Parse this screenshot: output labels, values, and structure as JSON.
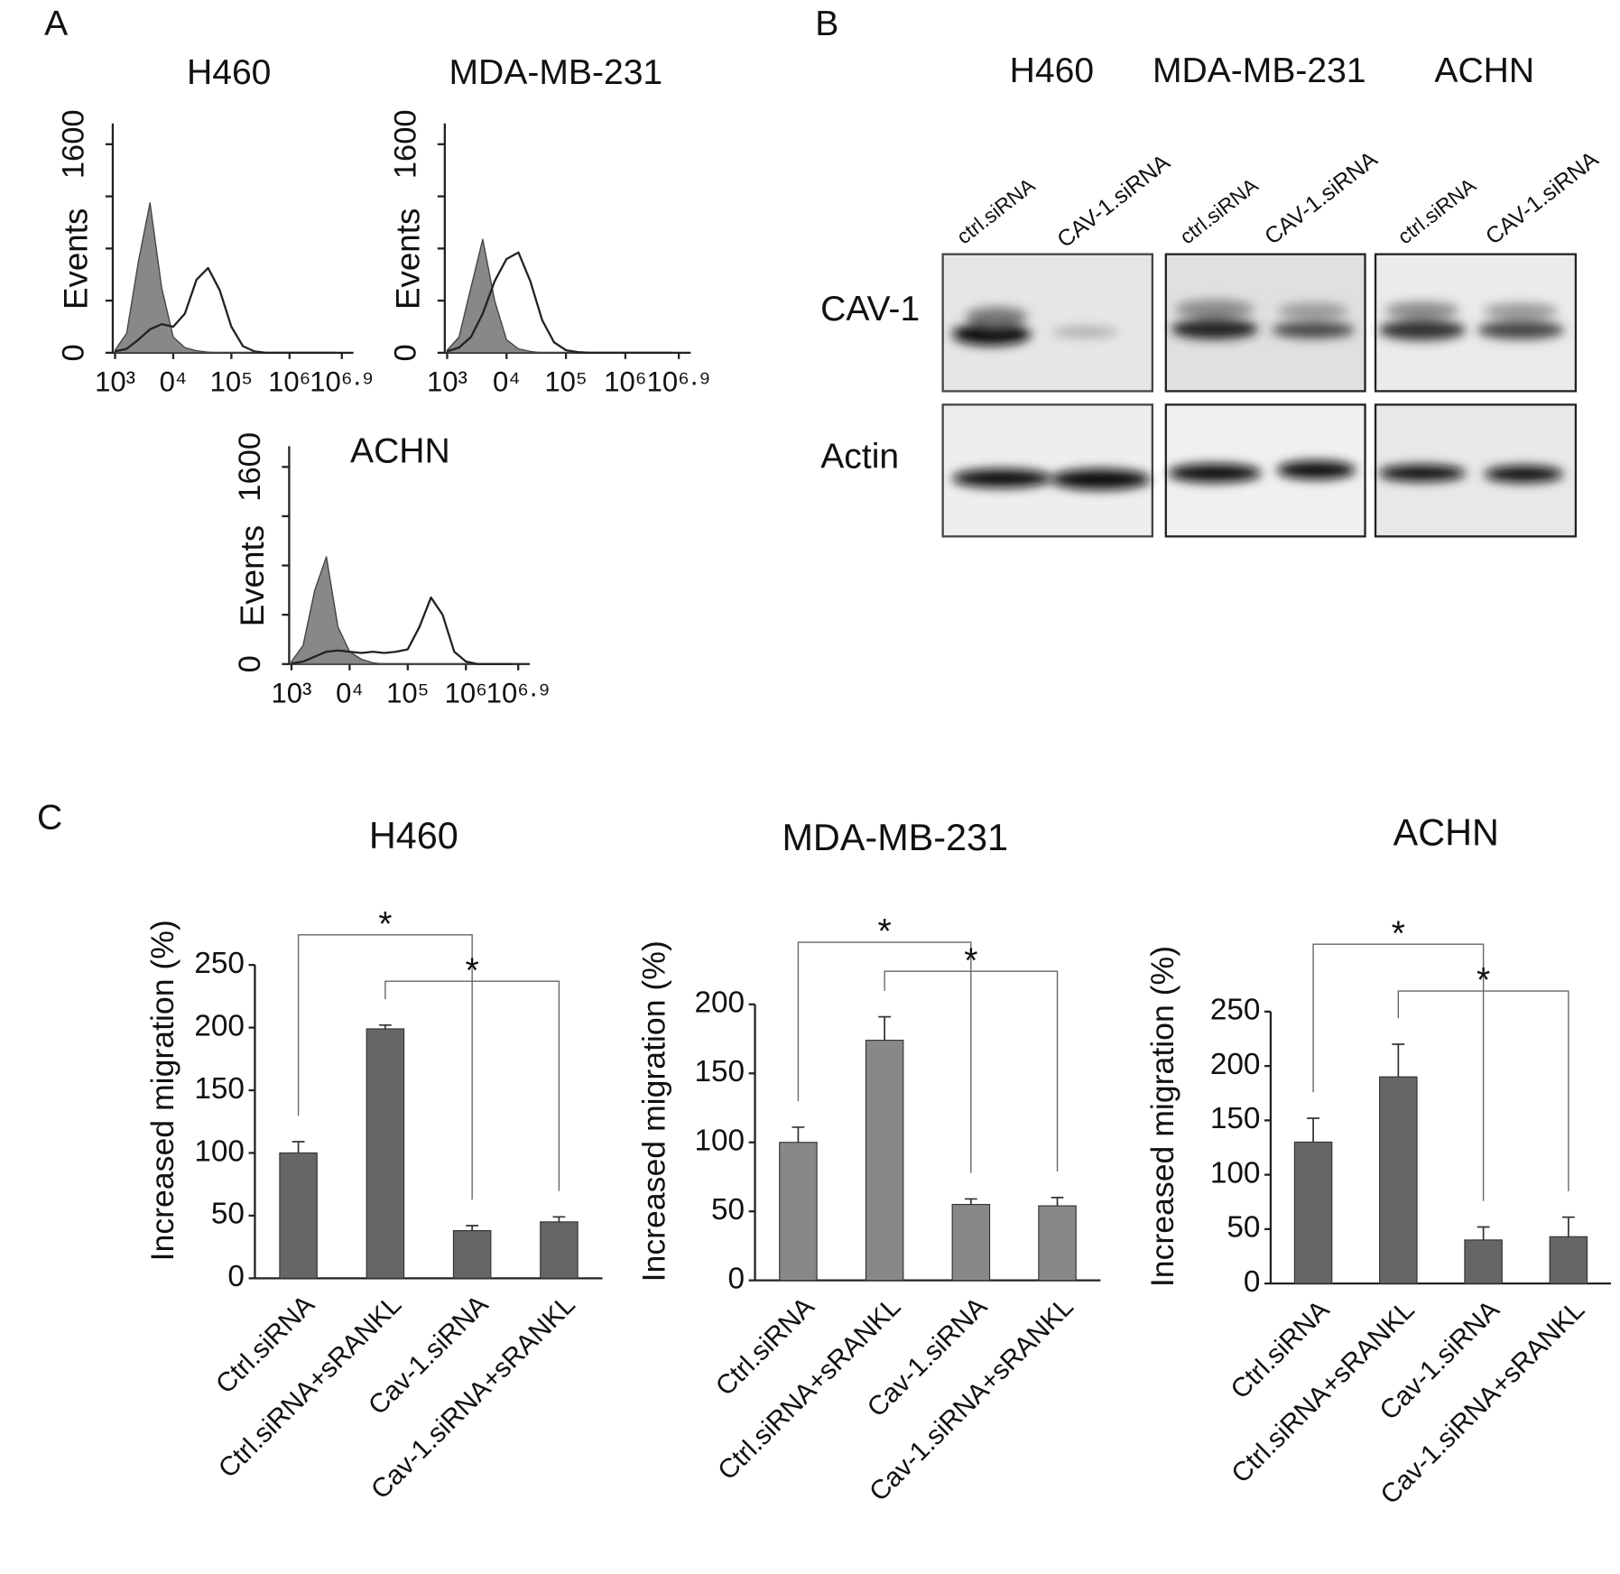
{
  "panel_labels": [
    "A",
    "B",
    "C"
  ],
  "western_blot": {
    "cell_lines": [
      "H460",
      "MDA-MB-231",
      "ACHN"
    ],
    "lanes": [
      [
        "ctrl.siRNA",
        "CAV-1.siRNA"
      ],
      [
        "ctrl.siRNA",
        "CAV-1.siRNA"
      ],
      [
        "ctrl.siRNA",
        "CAV-1.siRNA"
      ]
    ],
    "rows": [
      "CAV-1",
      "Actin"
    ]
  },
  "chart_data": [
    {
      "type": "line",
      "title": "H460",
      "ylabel": "Events",
      "x": [
        3.0,
        3.2,
        3.4,
        3.6,
        3.8,
        4.0,
        4.2,
        4.4,
        4.6,
        4.8,
        5.0,
        5.2,
        5.4,
        5.6,
        5.8,
        6.0,
        6.2,
        6.4,
        6.6,
        6.8
      ],
      "series": [
        {
          "color": "#444444",
          "fill": "#888888",
          "values": [
            20,
            150,
            700,
            1150,
            500,
            120,
            40,
            15,
            5,
            0,
            0,
            0,
            0,
            0,
            0,
            0,
            0,
            0,
            0,
            0
          ]
        },
        {
          "color": "#222222",
          "fill": null,
          "values": [
            10,
            30,
            100,
            180,
            220,
            200,
            300,
            560,
            650,
            480,
            200,
            50,
            10,
            0,
            0,
            0,
            0,
            0,
            0,
            0
          ]
        }
      ],
      "xlim": [
        2.96,
        7.1
      ],
      "xticks": [
        {
          "value": 3,
          "label": "10³"
        },
        {
          "value": 4,
          "label": "0⁴"
        },
        {
          "value": 5,
          "label": "10⁵"
        },
        {
          "value": 6,
          "label": "10⁶"
        },
        {
          "value": 6.9,
          "label": "10⁶·⁹"
        }
      ],
      "ylim": [
        0,
        1600
      ],
      "yticks": [
        0,
        1600
      ],
      "yminor_ticks": [
        400,
        800,
        1200
      ]
    },
    {
      "type": "line",
      "title": "MDA-MB-231",
      "ylabel": "Events",
      "x": [
        3.0,
        3.2,
        3.4,
        3.6,
        3.8,
        4.0,
        4.2,
        4.4,
        4.6,
        4.8,
        5.0,
        5.2,
        5.4,
        5.6,
        5.8,
        6.0,
        6.2,
        6.4,
        6.6,
        6.8
      ],
      "series": [
        {
          "color": "#444444",
          "fill": "#888888",
          "values": [
            20,
            120,
            500,
            870,
            400,
            100,
            30,
            10,
            0,
            0,
            0,
            0,
            0,
            0,
            0,
            0,
            0,
            0,
            0,
            0
          ]
        },
        {
          "color": "#222222",
          "fill": null,
          "values": [
            10,
            40,
            120,
            300,
            550,
            720,
            770,
            550,
            250,
            80,
            20,
            5,
            0,
            0,
            0,
            0,
            0,
            0,
            0,
            0
          ]
        }
      ],
      "xlim": [
        2.96,
        7.1
      ],
      "xticks": [
        {
          "value": 3,
          "label": "10³"
        },
        {
          "value": 4,
          "label": "0⁴"
        },
        {
          "value": 5,
          "label": "10⁵"
        },
        {
          "value": 6,
          "label": "10⁶"
        },
        {
          "value": 6.9,
          "label": "10⁶·⁹"
        }
      ],
      "ylim": [
        0,
        1600
      ],
      "yticks": [
        0,
        1600
      ],
      "yminor_ticks": [
        400,
        800,
        1200
      ]
    },
    {
      "type": "line",
      "title": "ACHN",
      "ylabel": "Events",
      "x": [
        3.0,
        3.2,
        3.4,
        3.6,
        3.8,
        4.0,
        4.2,
        4.4,
        4.6,
        4.8,
        5.0,
        5.2,
        5.4,
        5.6,
        5.8,
        6.0,
        6.2,
        6.4,
        6.6,
        6.8
      ],
      "series": [
        {
          "color": "#444444",
          "fill": "#888888",
          "values": [
            20,
            150,
            600,
            870,
            300,
            100,
            40,
            10,
            0,
            0,
            0,
            0,
            0,
            0,
            0,
            0,
            0,
            0,
            0,
            0
          ]
        },
        {
          "color": "#222222",
          "fill": null,
          "values": [
            5,
            20,
            60,
            100,
            110,
            100,
            90,
            100,
            90,
            100,
            120,
            300,
            540,
            400,
            100,
            20,
            0,
            0,
            0,
            0
          ]
        }
      ],
      "xlim": [
        2.96,
        7.1
      ],
      "xticks": [
        {
          "value": 3,
          "label": "10³"
        },
        {
          "value": 4,
          "label": "0⁴"
        },
        {
          "value": 5,
          "label": "10⁵"
        },
        {
          "value": 6,
          "label": "10⁶"
        },
        {
          "value": 6.9,
          "label": "10⁶·⁹"
        }
      ],
      "ylim": [
        0,
        1600
      ],
      "yticks": [
        0,
        1600
      ],
      "yminor_ticks": [
        400,
        800,
        1200
      ]
    },
    {
      "type": "bar",
      "title": "H460",
      "ylabel": "Increased migration (%)",
      "categories": [
        "Ctrl.siRNA",
        "Ctrl.siRNA+sRANKL",
        "Cav-1.siRNA",
        "Cav-1.siRNA+sRANKL"
      ],
      "values": [
        100,
        199,
        38,
        45
      ],
      "errors": [
        9,
        3,
        4,
        4
      ],
      "color": "#666666",
      "ylim": [
        0,
        250
      ],
      "yticks": [
        0,
        50,
        100,
        150,
        200,
        250
      ],
      "annotations": [
        {
          "text": "*",
          "from": "Ctrl.siRNA",
          "to": "Cav-1.siRNA",
          "y": 274
        },
        {
          "text": "*",
          "from": "Ctrl.siRNA+sRANKL",
          "to": "Cav-1.siRNA+sRANKL",
          "y": 237
        }
      ]
    },
    {
      "type": "bar",
      "title": "MDA-MB-231",
      "ylabel": "Increased migration (%)",
      "categories": [
        "Ctrl.siRNA",
        "Ctrl.siRNA+sRANKL",
        "Cav-1.siRNA",
        "Cav-1.siRNA+sRANKL"
      ],
      "values": [
        100,
        174,
        55,
        54
      ],
      "errors": [
        11,
        17,
        4,
        6
      ],
      "color": "#888888",
      "ylim": [
        0,
        200
      ],
      "yticks": [
        0,
        50,
        100,
        150,
        200
      ],
      "annotations": [
        {
          "text": "*",
          "from": "Ctrl.siRNA",
          "to": "Cav-1.siRNA",
          "y": 245
        },
        {
          "text": "*",
          "from": "Ctrl.siRNA+sRANKL",
          "to": "Cav-1.siRNA+sRANKL",
          "y": 224
        }
      ]
    },
    {
      "type": "bar",
      "title": "ACHN",
      "ylabel": "Increased migration (%)",
      "categories": [
        "Ctrl.siRNA",
        "Ctrl.siRNA+sRANKL",
        "Cav-1.siRNA",
        "Cav-1.siRNA+sRANKL"
      ],
      "values": [
        130,
        190,
        40,
        43
      ],
      "errors": [
        22,
        30,
        12,
        18
      ],
      "color": "#666666",
      "ylim": [
        0,
        250
      ],
      "yticks": [
        0,
        50,
        100,
        150,
        200,
        250
      ],
      "annotations": [
        {
          "text": "*",
          "from": "Ctrl.siRNA",
          "to": "Cav-1.siRNA",
          "y": 312
        },
        {
          "text": "*",
          "from": "Ctrl.siRNA+sRANKL",
          "to": "Cav-1.siRNA+sRANKL",
          "y": 269
        }
      ]
    }
  ]
}
